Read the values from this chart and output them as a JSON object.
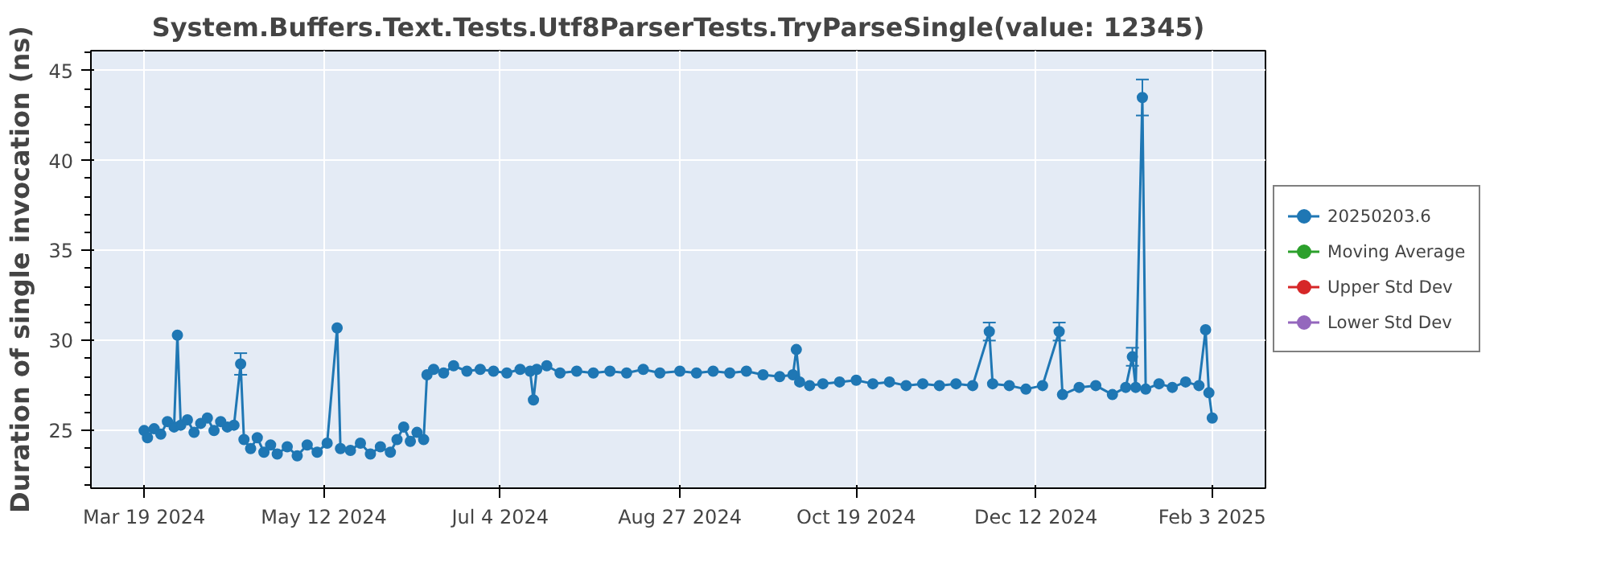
{
  "chart_data": {
    "type": "line",
    "title": "System.Buffers.Text.Tests.Utf8ParserTests.TryParseSingle(value: 12345)",
    "ylabel": "Duration of single invocation (ns)",
    "xlim": [
      "2024-03-03",
      "2025-02-19"
    ],
    "ylim": [
      21.8,
      46.1
    ],
    "xticks": [
      {
        "value": "2024-03-19",
        "label": "Mar 19 2024"
      },
      {
        "value": "2024-05-12",
        "label": "May 12 2024"
      },
      {
        "value": "2024-07-04",
        "label": "Jul 4 2024"
      },
      {
        "value": "2024-08-27",
        "label": "Aug 27 2024"
      },
      {
        "value": "2024-10-19",
        "label": "Oct 19 2024"
      },
      {
        "value": "2024-12-12",
        "label": "Dec 12 2024"
      },
      {
        "value": "2025-02-03",
        "label": "Feb 3 2025"
      }
    ],
    "yticks": [
      25,
      30,
      35,
      40,
      45
    ],
    "grid": true,
    "legend": "right",
    "marker": "circle",
    "line_style": "solid",
    "series": [
      {
        "name": "20250203.6",
        "color": "#1f77b4",
        "x": [
          "2024-03-19",
          "2024-03-20",
          "2024-03-22",
          "2024-03-24",
          "2024-03-26",
          "2024-03-28",
          "2024-03-29",
          "2024-03-30",
          "2024-04-01",
          "2024-04-03",
          "2024-04-05",
          "2024-04-07",
          "2024-04-09",
          "2024-04-11",
          "2024-04-13",
          "2024-04-15",
          "2024-04-17",
          "2024-04-18",
          "2024-04-20",
          "2024-04-22",
          "2024-04-24",
          "2024-04-26",
          "2024-04-28",
          "2024-05-01",
          "2024-05-04",
          "2024-05-07",
          "2024-05-10",
          "2024-05-13",
          "2024-05-16",
          "2024-05-17",
          "2024-05-20",
          "2024-05-23",
          "2024-05-26",
          "2024-05-29",
          "2024-06-01",
          "2024-06-03",
          "2024-06-05",
          "2024-06-07",
          "2024-06-09",
          "2024-06-11",
          "2024-06-12",
          "2024-06-14",
          "2024-06-17",
          "2024-06-20",
          "2024-06-24",
          "2024-06-28",
          "2024-07-02",
          "2024-07-06",
          "2024-07-10",
          "2024-07-13",
          "2024-07-14",
          "2024-07-15",
          "2024-07-18",
          "2024-07-22",
          "2024-07-27",
          "2024-08-01",
          "2024-08-06",
          "2024-08-11",
          "2024-08-16",
          "2024-08-21",
          "2024-08-27",
          "2024-09-01",
          "2024-09-06",
          "2024-09-11",
          "2024-09-16",
          "2024-09-21",
          "2024-09-26",
          "2024-09-30",
          "2024-10-01",
          "2024-10-02",
          "2024-10-05",
          "2024-10-09",
          "2024-10-14",
          "2024-10-19",
          "2024-10-24",
          "2024-10-29",
          "2024-11-03",
          "2024-11-08",
          "2024-11-13",
          "2024-11-18",
          "2024-11-23",
          "2024-11-28",
          "2024-11-29",
          "2024-12-04",
          "2024-12-09",
          "2024-12-14",
          "2024-12-19",
          "2024-12-20",
          "2024-12-25",
          "2024-12-30",
          "2025-01-04",
          "2025-01-08",
          "2025-01-10",
          "2025-01-11",
          "2025-01-13",
          "2025-01-14",
          "2025-01-18",
          "2025-01-22",
          "2025-01-26",
          "2025-01-30",
          "2025-02-01",
          "2025-02-02",
          "2025-02-03"
        ],
        "values": [
          25.0,
          24.6,
          25.1,
          24.8,
          25.5,
          25.2,
          30.3,
          25.3,
          25.6,
          24.9,
          25.4,
          25.7,
          25.0,
          25.5,
          25.2,
          25.3,
          28.7,
          24.5,
          24.0,
          24.6,
          23.8,
          24.2,
          23.7,
          24.1,
          23.6,
          24.2,
          23.8,
          24.3,
          30.7,
          24.0,
          23.9,
          24.3,
          23.7,
          24.1,
          23.8,
          24.5,
          25.2,
          24.4,
          24.9,
          24.5,
          28.1,
          28.4,
          28.2,
          28.6,
          28.3,
          28.4,
          28.3,
          28.2,
          28.4,
          28.3,
          26.7,
          28.4,
          28.6,
          28.2,
          28.3,
          28.2,
          28.3,
          28.2,
          28.4,
          28.2,
          28.3,
          28.2,
          28.3,
          28.2,
          28.3,
          28.1,
          28.0,
          28.1,
          29.5,
          27.7,
          27.5,
          27.6,
          27.7,
          27.8,
          27.6,
          27.7,
          27.5,
          27.6,
          27.5,
          27.6,
          27.5,
          30.5,
          27.6,
          27.5,
          27.3,
          27.5,
          30.5,
          27.0,
          27.4,
          27.5,
          27.0,
          27.4,
          29.1,
          27.4,
          43.5,
          27.3,
          27.6,
          27.4,
          27.7,
          27.5,
          30.6,
          27.1,
          25.7
        ],
        "errors": [
          null,
          null,
          null,
          null,
          null,
          null,
          null,
          null,
          null,
          null,
          null,
          null,
          null,
          null,
          null,
          null,
          0.6,
          null,
          null,
          null,
          null,
          null,
          null,
          null,
          null,
          null,
          null,
          null,
          null,
          null,
          null,
          null,
          null,
          null,
          null,
          null,
          null,
          null,
          null,
          null,
          null,
          null,
          null,
          null,
          null,
          null,
          null,
          null,
          null,
          null,
          null,
          null,
          null,
          null,
          null,
          null,
          null,
          null,
          null,
          null,
          null,
          null,
          null,
          null,
          null,
          null,
          null,
          null,
          null,
          null,
          null,
          null,
          null,
          null,
          null,
          null,
          null,
          null,
          null,
          null,
          null,
          0.5,
          null,
          null,
          null,
          null,
          0.5,
          null,
          null,
          null,
          null,
          null,
          0.5,
          null,
          1.0,
          null,
          null,
          null,
          null,
          null,
          null,
          null,
          null
        ]
      },
      {
        "name": "Moving Average",
        "color": "#2ca02c"
      },
      {
        "name": "Upper Std Dev",
        "color": "#d62728"
      },
      {
        "name": "Lower Std Dev",
        "color": "#9467bd"
      }
    ]
  }
}
